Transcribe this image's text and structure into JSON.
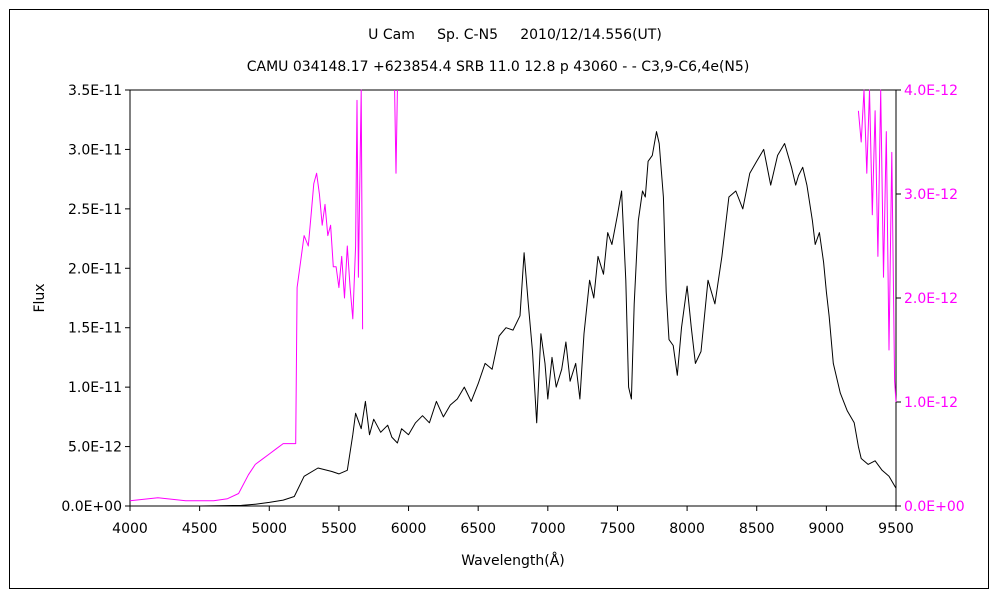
{
  "chart_data": {
    "type": "line",
    "title": "U Cam     Sp. C-N5     2010/12/14.556(UT)",
    "subtitle": "CAMU 034148.17 +623854.4 SRB 11.0 12.8 p 43060 - - C3,9-C6,4e(N5)",
    "xlabel": "Wavelength(Å)",
    "ylabel": "Flux",
    "xlim": [
      4000,
      9500
    ],
    "ylim": [
      0,
      3.5e-11
    ],
    "y2lim": [
      0,
      4e-12
    ],
    "xticks": [
      "4000",
      "4500",
      "5000",
      "5500",
      "6000",
      "6500",
      "7000",
      "7500",
      "8000",
      "8500",
      "9000",
      "9500"
    ],
    "yticks": [
      "0.0E+00",
      "5.0E-12",
      "1.0E-11",
      "1.5E-11",
      "2.0E-11",
      "2.5E-11",
      "3.0E-11",
      "3.5E-11"
    ],
    "y2ticks": [
      "0.0E+00",
      "1.0E-12",
      "2.0E-12",
      "3.0E-12",
      "4.0E-12"
    ],
    "colors": {
      "primary": "#000000",
      "secondary": "#ff00ff"
    },
    "grid": false,
    "legend": "none",
    "series": [
      {
        "axis": "left",
        "color": "#000000",
        "x": [
          4000,
          4500,
          4800,
          4900,
          5000,
          5100,
          5180,
          5250,
          5350,
          5450,
          5500,
          5560,
          5600,
          5620,
          5660,
          5690,
          5720,
          5750,
          5800,
          5850,
          5880,
          5920,
          5950,
          6000,
          6050,
          6100,
          6150,
          6200,
          6250,
          6300,
          6350,
          6400,
          6450,
          6500,
          6550,
          6600,
          6650,
          6700,
          6750,
          6800,
          6830,
          6860,
          6890,
          6920,
          6950,
          6980,
          7000,
          7030,
          7060,
          7100,
          7130,
          7160,
          7200,
          7230,
          7260,
          7300,
          7330,
          7360,
          7400,
          7430,
          7460,
          7500,
          7530,
          7560,
          7580,
          7600,
          7620,
          7650,
          7680,
          7700,
          7720,
          7750,
          7780,
          7800,
          7830,
          7850,
          7870,
          7900,
          7930,
          7960,
          8000,
          8030,
          8060,
          8100,
          8150,
          8200,
          8250,
          8300,
          8350,
          8400,
          8450,
          8500,
          8550,
          8600,
          8650,
          8700,
          8750,
          8780,
          8800,
          8830,
          8860,
          8900,
          8920,
          8950,
          8980,
          9000,
          9020,
          9050,
          9100,
          9150,
          9200,
          9230,
          9250,
          9300,
          9350,
          9400,
          9450,
          9500
        ],
        "y": [
          0,
          0,
          5e-14,
          1.5e-13,
          3e-13,
          5e-13,
          8e-13,
          2.5e-12,
          3.2e-12,
          2.9e-12,
          2.7e-12,
          3e-12,
          6e-12,
          7.8e-12,
          6.5e-12,
          8.8e-12,
          6e-12,
          7.3e-12,
          6.2e-12,
          6.8e-12,
          5.8e-12,
          5.3e-12,
          6.5e-12,
          6e-12,
          7e-12,
          7.6e-12,
          7e-12,
          8.8e-12,
          7.5e-12,
          8.5e-12,
          9e-12,
          1e-11,
          8.8e-12,
          1.03e-11,
          1.2e-11,
          1.15e-11,
          1.43e-11,
          1.5e-11,
          1.48e-11,
          1.6e-11,
          2.13e-11,
          1.7e-11,
          1.3e-11,
          7e-12,
          1.45e-11,
          1.2e-11,
          9e-12,
          1.25e-11,
          1e-11,
          1.15e-11,
          1.38e-11,
          1.05e-11,
          1.2e-11,
          9e-12,
          1.45e-11,
          1.9e-11,
          1.75e-11,
          2.1e-11,
          1.95e-11,
          2.3e-11,
          2.2e-11,
          2.45e-11,
          2.65e-11,
          1.9e-11,
          1e-11,
          9e-12,
          1.7e-11,
          2.4e-11,
          2.65e-11,
          2.6e-11,
          2.9e-11,
          2.95e-11,
          3.15e-11,
          3.05e-11,
          2.6e-11,
          1.8e-11,
          1.4e-11,
          1.35e-11,
          1.1e-11,
          1.5e-11,
          1.85e-11,
          1.5e-11,
          1.2e-11,
          1.3e-11,
          1.9e-11,
          1.7e-11,
          2.1e-11,
          2.6e-11,
          2.65e-11,
          2.5e-11,
          2.8e-11,
          2.9e-11,
          3e-11,
          2.7e-11,
          2.95e-11,
          3.05e-11,
          2.85e-11,
          2.7e-11,
          2.78e-11,
          2.85e-11,
          2.7e-11,
          2.4e-11,
          2.2e-11,
          2.3e-11,
          2.05e-11,
          1.8e-11,
          1.6e-11,
          1.2e-11,
          9.5e-12,
          8e-12,
          7e-12,
          5e-12,
          4e-12,
          3.5e-12,
          3.8e-12,
          3e-12,
          2.5e-12,
          1.5e-12
        ]
      },
      {
        "axis": "right",
        "color": "#ff00ff",
        "x": [
          4000,
          4200,
          4400,
          4600,
          4700,
          4780,
          4850,
          4900,
          4950,
          5000,
          5050,
          5100,
          5150,
          5190,
          5200,
          5210,
          5230,
          5250,
          5280,
          5300,
          5320,
          5340,
          5360,
          5380,
          5400,
          5420,
          5440,
          5460,
          5480,
          5500,
          5520,
          5540,
          5560,
          5580,
          5600,
          5620,
          5630,
          5640,
          5660,
          5670
        ],
        "y": [
          5e-14,
          8e-14,
          5e-14,
          5e-14,
          7e-14,
          1.2e-13,
          3e-13,
          4e-13,
          4.5e-13,
          5e-13,
          5.5e-13,
          6e-13,
          6e-13,
          6e-13,
          2.1e-12,
          2.2e-12,
          2.4e-12,
          2.6e-12,
          2.5e-12,
          2.8e-12,
          3.1e-12,
          3.2e-12,
          3e-12,
          2.7e-12,
          2.9e-12,
          2.6e-12,
          2.7e-12,
          2.3e-12,
          2.3e-12,
          2.1e-12,
          2.4e-12,
          2e-12,
          2.5e-12,
          2.1e-12,
          1.8e-12,
          2.5e-12,
          3.9e-12,
          2.2e-12,
          4e-12,
          1.7e-12
        ]
      },
      {
        "axis": "right",
        "color": "#ff00ff",
        "x": [
          5900,
          5910,
          5920
        ],
        "y": [
          4e-12,
          3.2e-12,
          4e-12
        ]
      },
      {
        "axis": "right",
        "color": "#ff00ff",
        "x": [
          9230,
          9250,
          9270,
          9290,
          9310,
          9330,
          9350,
          9370,
          9390,
          9410,
          9430,
          9450,
          9470,
          9490,
          9500
        ],
        "y": [
          3.8e-12,
          3.5e-12,
          4e-12,
          3.2e-12,
          4e-12,
          2.8e-12,
          3.8e-12,
          2.4e-12,
          4e-12,
          2.2e-12,
          3.6e-12,
          1.5e-12,
          3.4e-12,
          1.2e-12,
          1e-12
        ]
      }
    ]
  }
}
